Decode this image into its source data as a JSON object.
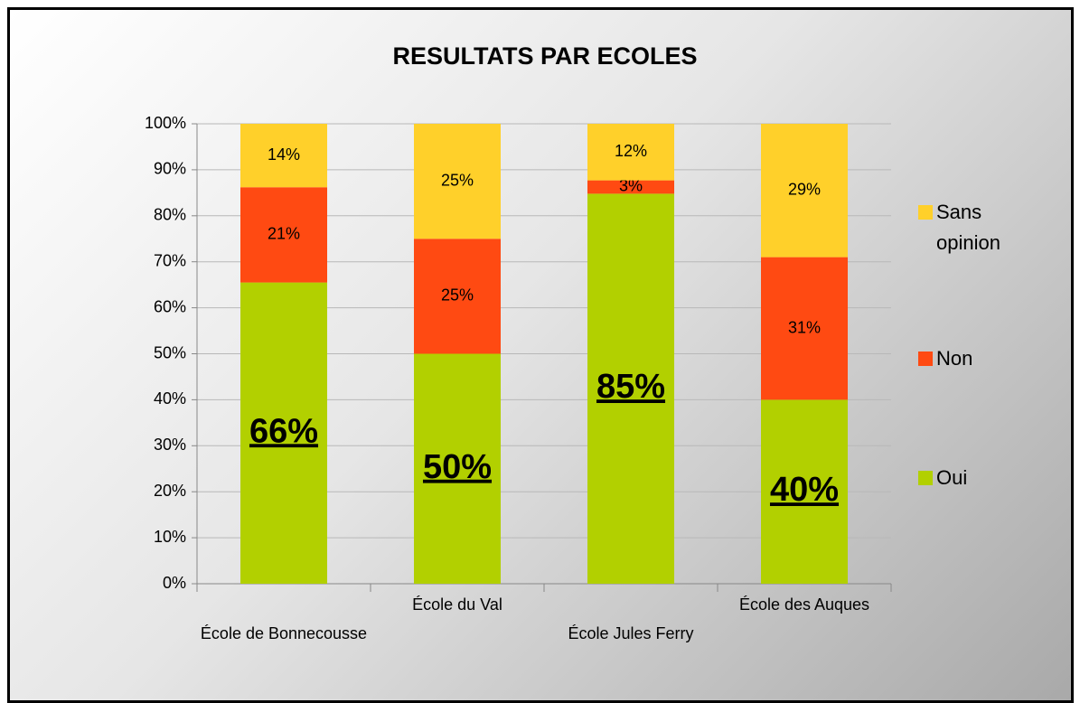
{
  "chart_data": {
    "type": "stacked_bar",
    "title": "RESULTATS PAR ECOLES",
    "categories": [
      "École de Bonnecousse",
      "École du Val",
      "École Jules Ferry",
      "École des Auques"
    ],
    "series": [
      {
        "name": "Oui",
        "color": "#b2d000",
        "values": [
          65.5,
          50,
          84.8,
          40
        ],
        "value_labels": [
          "66%",
          "50%",
          "85%",
          "40%"
        ]
      },
      {
        "name": "Non",
        "color": "#ff4a12",
        "values": [
          20.7,
          25,
          2.9,
          31
        ],
        "value_labels": [
          "21%",
          "25%",
          "3%",
          "31%"
        ]
      },
      {
        "name": "Sans opinion",
        "color": "#ffd02a",
        "values": [
          13.8,
          25,
          12.3,
          29
        ],
        "value_labels": [
          "14%",
          "25%",
          "12%",
          "29%"
        ]
      }
    ],
    "ylim": [
      0,
      100
    ],
    "yticks": [
      {
        "value": 0,
        "label": "0%"
      },
      {
        "value": 10,
        "label": "10%"
      },
      {
        "value": 20,
        "label": "20%"
      },
      {
        "value": 30,
        "label": "30%"
      },
      {
        "value": 40,
        "label": "40%"
      },
      {
        "value": 50,
        "label": "50%"
      },
      {
        "value": 60,
        "label": "60%"
      },
      {
        "value": 70,
        "label": "70%"
      },
      {
        "value": 80,
        "label": "80%"
      },
      {
        "value": 90,
        "label": "90%"
      },
      {
        "value": 100,
        "label": "100%"
      }
    ],
    "grid": true,
    "legend": "right"
  }
}
